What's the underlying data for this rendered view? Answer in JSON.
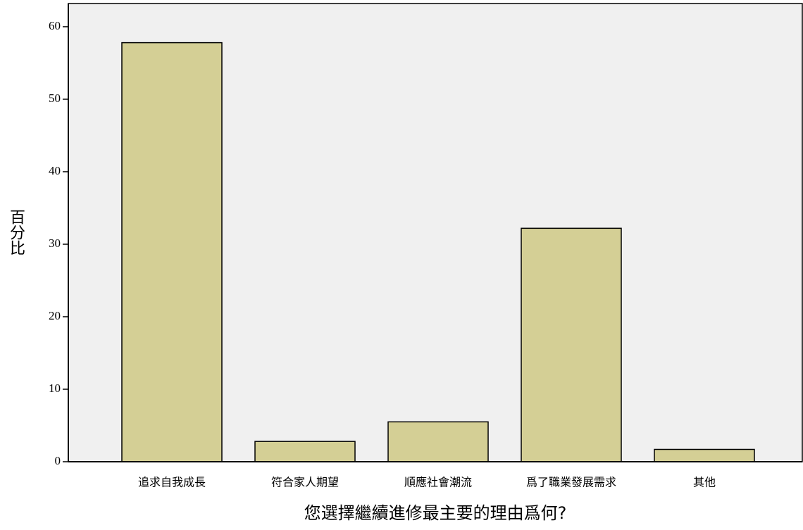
{
  "chart_data": {
    "type": "bar",
    "x_label": "您選擇繼續進修最主要的理由爲何?",
    "y_label": "百分比",
    "categories": [
      "追求自我成長",
      "符合家人期望",
      "順應社會潮流",
      "爲了職業發展需求",
      "其他"
    ],
    "values": [
      57.8,
      2.8,
      5.5,
      32.2,
      1.7
    ],
    "color": "#d4cf95",
    "ylim": [
      0,
      63.2
    ],
    "yticks": [
      0,
      10,
      20,
      30,
      40,
      50,
      60
    ]
  }
}
